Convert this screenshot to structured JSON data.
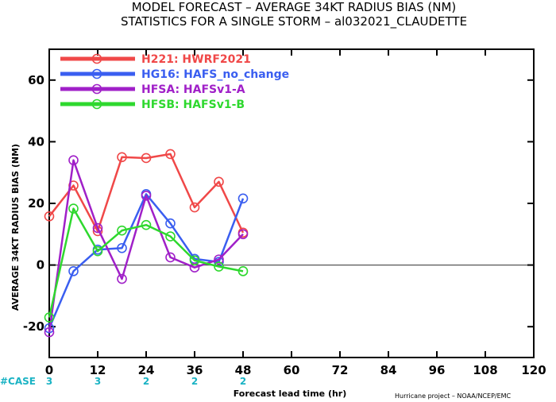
{
  "chart_data": {
    "type": "line",
    "title": "MODEL FORECAST – AVERAGE 34KT RADIUS BIAS (NM)",
    "subtitle": "STATISTICS FOR A SINGLE STORM – al032021_CLAUDETTE",
    "xlabel": "Forecast lead time (hr)",
    "ylabel": "AVERAGE 34KT RADIUS BIAS (NM)",
    "xlim": [
      0,
      120
    ],
    "ylim": [
      -30,
      70
    ],
    "xticks": [
      0,
      12,
      24,
      36,
      48,
      60,
      72,
      84,
      96,
      108,
      120
    ],
    "yticks": [
      -20,
      0,
      20,
      40,
      60
    ],
    "zero_line": true,
    "grid": false,
    "legend_position": "top-left",
    "case_label": "#CASE",
    "cases": [
      {
        "x": 0,
        "n": "3"
      },
      {
        "x": 12,
        "n": "3"
      },
      {
        "x": 24,
        "n": "2"
      },
      {
        "x": 36,
        "n": "2"
      },
      {
        "x": 48,
        "n": "2"
      }
    ],
    "credit": "Hurricane project – NOAA/NCEP/EMC",
    "series": [
      {
        "name": "H221: HWRF2021",
        "color": "#f04848",
        "x": [
          0,
          6,
          12,
          18,
          24,
          30,
          36,
          42,
          48
        ],
        "values": [
          15.8,
          25.8,
          11.0,
          35.0,
          34.7,
          36.0,
          18.7,
          27.0,
          10.5
        ]
      },
      {
        "name": "HG16: HAFS_no_change",
        "color": "#3a5ef0",
        "x": [
          0,
          6,
          12,
          18,
          24,
          30,
          36,
          42,
          48
        ],
        "values": [
          -20.5,
          -2.0,
          5.0,
          5.5,
          23.0,
          13.5,
          2.0,
          1.0,
          21.6
        ]
      },
      {
        "name": "HFSA: HAFSv1-A",
        "color": "#a020c8",
        "x": [
          0,
          6,
          12,
          18,
          24,
          30,
          36,
          42,
          48
        ],
        "values": [
          -21.8,
          34.0,
          12.0,
          -4.5,
          22.5,
          2.5,
          -0.8,
          1.8,
          10.0
        ]
      },
      {
        "name": "HFSB: HAFSv1-B",
        "color": "#2ed82e",
        "x": [
          0,
          6,
          12,
          18,
          24,
          30,
          36,
          42,
          48
        ],
        "values": [
          -17.0,
          18.3,
          4.5,
          11.2,
          13.0,
          9.3,
          1.5,
          -0.5,
          -2.0
        ]
      }
    ]
  }
}
